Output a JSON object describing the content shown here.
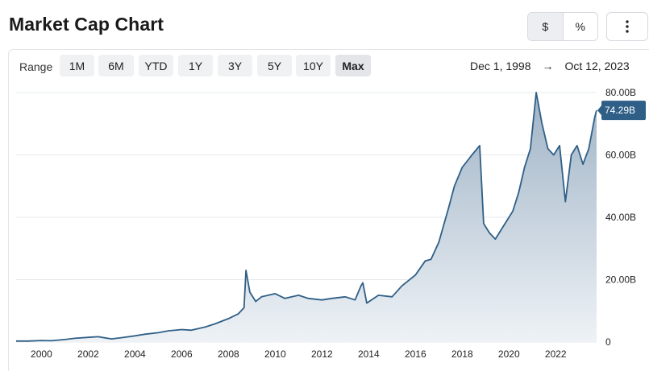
{
  "header": {
    "title": "Market Cap Chart",
    "unit_toggle": {
      "dollar": "$",
      "percent": "%",
      "selected": "$"
    },
    "more_icon": "vertical-ellipsis-icon"
  },
  "range": {
    "label": "Range",
    "options": [
      "1M",
      "6M",
      "YTD",
      "1Y",
      "3Y",
      "5Y",
      "10Y",
      "Max"
    ],
    "selected": "Max",
    "start_date": "Dec 1, 1998",
    "arrow": "→",
    "end_date": "Oct 12, 2023"
  },
  "colors": {
    "line": "#2f5f86",
    "fill_top": "#9fb3c6",
    "fill_bottom": "#eef2f6",
    "badge": "#2f5f86",
    "grid": "#e6e8eb"
  },
  "chart_data": {
    "type": "area",
    "title": "",
    "xlabel": "",
    "ylabel": "",
    "x_ticks": [
      "2000",
      "2002",
      "2004",
      "2006",
      "2008",
      "2010",
      "2012",
      "2014",
      "2016",
      "2018",
      "2020",
      "2022"
    ],
    "y_ticks": [
      "0",
      "20.00B",
      "40.00B",
      "60.00B",
      "80.00B"
    ],
    "ylim": [
      0,
      80
    ],
    "x_range": [
      "1998-12",
      "2023-10"
    ],
    "y_unit": "B USD",
    "grid": true,
    "last_value_label": "74.29B",
    "series": [
      {
        "x": [
          "1998-12",
          "1999-06",
          "2000-01",
          "2000-06",
          "2001-01",
          "2001-06",
          "2002-01",
          "2002-06",
          "2003-01",
          "2003-06",
          "2004-01",
          "2004-06",
          "2005-01",
          "2005-06",
          "2006-01",
          "2006-06",
          "2007-01",
          "2007-06",
          "2008-01",
          "2008-06",
          "2008-09",
          "2008-10",
          "2008-12",
          "2009-03",
          "2009-06",
          "2010-01",
          "2010-06",
          "2011-01",
          "2011-06",
          "2012-01",
          "2012-06",
          "2013-01",
          "2013-06",
          "2013-09",
          "2013-10",
          "2013-12",
          "2014-06",
          "2015-01",
          "2015-06",
          "2016-01",
          "2016-06",
          "2016-09",
          "2017-01",
          "2017-06",
          "2017-09",
          "2018-01",
          "2018-06",
          "2018-10",
          "2018-12",
          "2019-03",
          "2019-06",
          "2019-09",
          "2019-12",
          "2020-03",
          "2020-06",
          "2020-09",
          "2020-12",
          "2021-03",
          "2021-06",
          "2021-09",
          "2021-12",
          "2022-03",
          "2022-06",
          "2022-09",
          "2022-12",
          "2023-03",
          "2023-06",
          "2023-09",
          "2023-10"
        ],
        "values": [
          0.3,
          0.3,
          0.5,
          0.4,
          0.8,
          1.2,
          1.5,
          1.7,
          1.0,
          1.4,
          2.0,
          2.5,
          3.0,
          3.6,
          4.0,
          3.8,
          4.8,
          5.8,
          7.5,
          9.0,
          11.0,
          23.0,
          16.0,
          13.0,
          14.5,
          15.5,
          14.0,
          15.0,
          14.0,
          13.5,
          14.0,
          14.5,
          13.5,
          18.0,
          19.0,
          12.5,
          15.0,
          14.5,
          18.0,
          21.5,
          26.0,
          26.5,
          32.0,
          43.0,
          50.0,
          56.0,
          60.0,
          63.0,
          38.0,
          35.0,
          33.0,
          36.0,
          39.0,
          42.0,
          48.0,
          56.0,
          62.0,
          80.0,
          70.0,
          62.0,
          60.0,
          63.0,
          45.0,
          60.0,
          63.0,
          57.0,
          62.0,
          72.0,
          74.29
        ]
      }
    ]
  }
}
